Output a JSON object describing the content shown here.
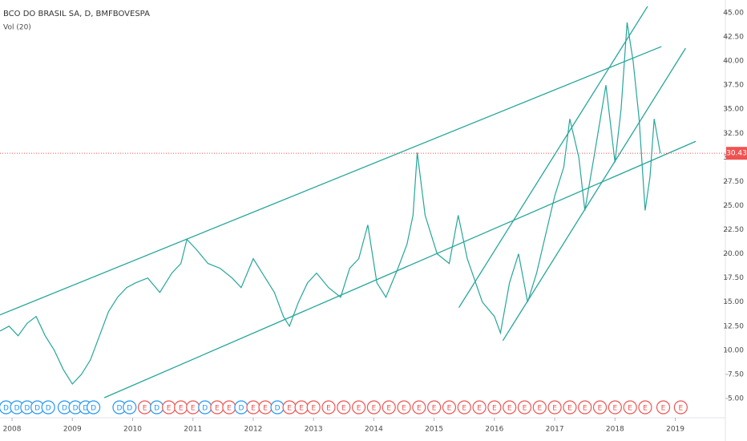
{
  "chart_data": {
    "type": "line",
    "title": "BCO DO BRASIL SA, D, BMFBOVESPA",
    "subtitle": "Vol (20)",
    "x": [
      2007.8,
      2007.95,
      2008.1,
      2008.25,
      2008.4,
      2008.55,
      2008.7,
      2008.85,
      2009.0,
      2009.15,
      2009.3,
      2009.45,
      2009.6,
      2009.75,
      2009.9,
      2010.05,
      2010.25,
      2010.45,
      2010.65,
      2010.8,
      2010.9,
      2011.05,
      2011.25,
      2011.45,
      2011.65,
      2011.8,
      2012.0,
      2012.15,
      2012.35,
      2012.5,
      2012.6,
      2012.75,
      2012.9,
      2013.05,
      2013.25,
      2013.45,
      2013.6,
      2013.75,
      2013.9,
      2014.05,
      2014.2,
      2014.4,
      2014.55,
      2014.65,
      2014.72,
      2014.85,
      2015.05,
      2015.25,
      2015.4,
      2015.55,
      2015.8,
      2016.0,
      2016.1,
      2016.25,
      2016.4,
      2016.55,
      2016.7,
      2016.85,
      2017.0,
      2017.15,
      2017.25,
      2017.4,
      2017.5,
      2017.65,
      2017.85,
      2018.0,
      2018.1,
      2018.2,
      2018.3,
      2018.4,
      2018.5,
      2018.58,
      2018.65,
      2018.75
    ],
    "values": [
      12,
      12.5,
      11.5,
      12.8,
      13.5,
      11.5,
      10,
      8,
      6.5,
      7.5,
      9,
      11.5,
      14,
      15.5,
      16.5,
      17,
      17.5,
      16,
      18,
      19,
      21.5,
      20.5,
      19,
      18.5,
      17.5,
      16.5,
      19.5,
      18,
      16,
      13.5,
      12.5,
      15,
      17,
      18,
      16.5,
      15.5,
      18.5,
      19.5,
      23,
      17,
      15.5,
      18.5,
      21,
      24,
      30.5,
      24,
      20,
      19,
      24,
      19.5,
      15,
      13.5,
      11.8,
      17,
      20,
      15,
      18,
      22,
      26,
      29,
      34,
      30,
      24.5,
      30,
      37.5,
      29.5,
      35,
      44,
      40,
      34,
      24.5,
      28,
      34,
      30.43
    ],
    "color": "#26a69a",
    "last": {
      "value": 30.43,
      "label": "30.43"
    },
    "trendlines": [
      {
        "x": [
          2007.8,
          2018.77
        ],
        "values": [
          13.67,
          41.5
        ]
      },
      {
        "x": [
          2009.53,
          2019.34
        ],
        "values": [
          5.08,
          31.67
        ]
      },
      {
        "x": [
          2015.41,
          2018.54
        ],
        "values": [
          14.42,
          45.67
        ]
      },
      {
        "x": [
          2016.14,
          2019.17
        ],
        "values": [
          11.0,
          41.33
        ]
      }
    ],
    "events": [
      {
        "x": 2007.9,
        "label": "D"
      },
      {
        "x": 2008.08,
        "label": "D"
      },
      {
        "x": 2008.25,
        "label": "D"
      },
      {
        "x": 2008.42,
        "label": "D"
      },
      {
        "x": 2008.6,
        "label": "D"
      },
      {
        "x": 2008.87,
        "label": "D"
      },
      {
        "x": 2009.05,
        "label": "D"
      },
      {
        "x": 2009.22,
        "label": "D"
      },
      {
        "x": 2009.35,
        "label": "D"
      },
      {
        "x": 2009.78,
        "label": "D"
      },
      {
        "x": 2009.95,
        "label": "D"
      },
      {
        "x": 2010.2,
        "label": "E"
      },
      {
        "x": 2010.4,
        "label": "D"
      },
      {
        "x": 2010.6,
        "label": "E"
      },
      {
        "x": 2010.8,
        "label": "E"
      },
      {
        "x": 2011.0,
        "label": "E"
      },
      {
        "x": 2011.2,
        "label": "D"
      },
      {
        "x": 2011.4,
        "label": "E"
      },
      {
        "x": 2011.6,
        "label": "E"
      },
      {
        "x": 2011.8,
        "label": "D"
      },
      {
        "x": 2012.0,
        "label": "E"
      },
      {
        "x": 2012.2,
        "label": "E"
      },
      {
        "x": 2012.4,
        "label": "D"
      },
      {
        "x": 2012.6,
        "label": "E"
      },
      {
        "x": 2012.8,
        "label": "E"
      },
      {
        "x": 2013.0,
        "label": "E"
      },
      {
        "x": 2013.25,
        "label": "E"
      },
      {
        "x": 2013.5,
        "label": "E"
      },
      {
        "x": 2013.75,
        "label": "E"
      },
      {
        "x": 2014.0,
        "label": "E"
      },
      {
        "x": 2014.25,
        "label": "E"
      },
      {
        "x": 2014.5,
        "label": "E"
      },
      {
        "x": 2014.75,
        "label": "E"
      },
      {
        "x": 2015.0,
        "label": "E"
      },
      {
        "x": 2015.25,
        "label": "E"
      },
      {
        "x": 2015.5,
        "label": "E"
      },
      {
        "x": 2015.75,
        "label": "E"
      },
      {
        "x": 2016.0,
        "label": "E"
      },
      {
        "x": 2016.25,
        "label": "E"
      },
      {
        "x": 2016.5,
        "label": "E"
      },
      {
        "x": 2016.75,
        "label": "E"
      },
      {
        "x": 2017.0,
        "label": "E"
      },
      {
        "x": 2017.25,
        "label": "E"
      },
      {
        "x": 2017.5,
        "label": "E"
      },
      {
        "x": 2017.75,
        "label": "E"
      },
      {
        "x": 2018.0,
        "label": "E"
      },
      {
        "x": 2018.25,
        "label": "E"
      },
      {
        "x": 2018.5,
        "label": "E"
      },
      {
        "x": 2018.8,
        "label": "E"
      },
      {
        "x": 2019.09,
        "label": "E"
      }
    ],
    "xlim": [
      2007.8,
      2019.83
    ],
    "xticks": [
      2008,
      2009,
      2010,
      2011,
      2012,
      2013,
      2014,
      2015,
      2016,
      2017,
      2018,
      2019
    ],
    "ylim": [
      3,
      46.33
    ],
    "yticks": [
      {
        "value": 5,
        "label": "5.00"
      },
      {
        "value": 7.5,
        "label": "7.50"
      },
      {
        "value": 10,
        "label": "10.00"
      },
      {
        "value": 12.5,
        "label": "12.50"
      },
      {
        "value": 15,
        "label": "15.00"
      },
      {
        "value": 17.5,
        "label": "17.50"
      },
      {
        "value": 20,
        "label": "20.00"
      },
      {
        "value": 22.5,
        "label": "22.50"
      },
      {
        "value": 25,
        "label": "25.00"
      },
      {
        "value": 27.5,
        "label": "27.50"
      },
      {
        "value": 30,
        "label": "30.00"
      },
      {
        "value": 32.5,
        "label": "32.50"
      },
      {
        "value": 35,
        "label": "35.00"
      },
      {
        "value": 37.5,
        "label": "37.50"
      },
      {
        "value": 40,
        "label": "40.00"
      },
      {
        "value": 42.5,
        "label": "42.50"
      },
      {
        "value": 45,
        "label": "45.00"
      }
    ]
  }
}
